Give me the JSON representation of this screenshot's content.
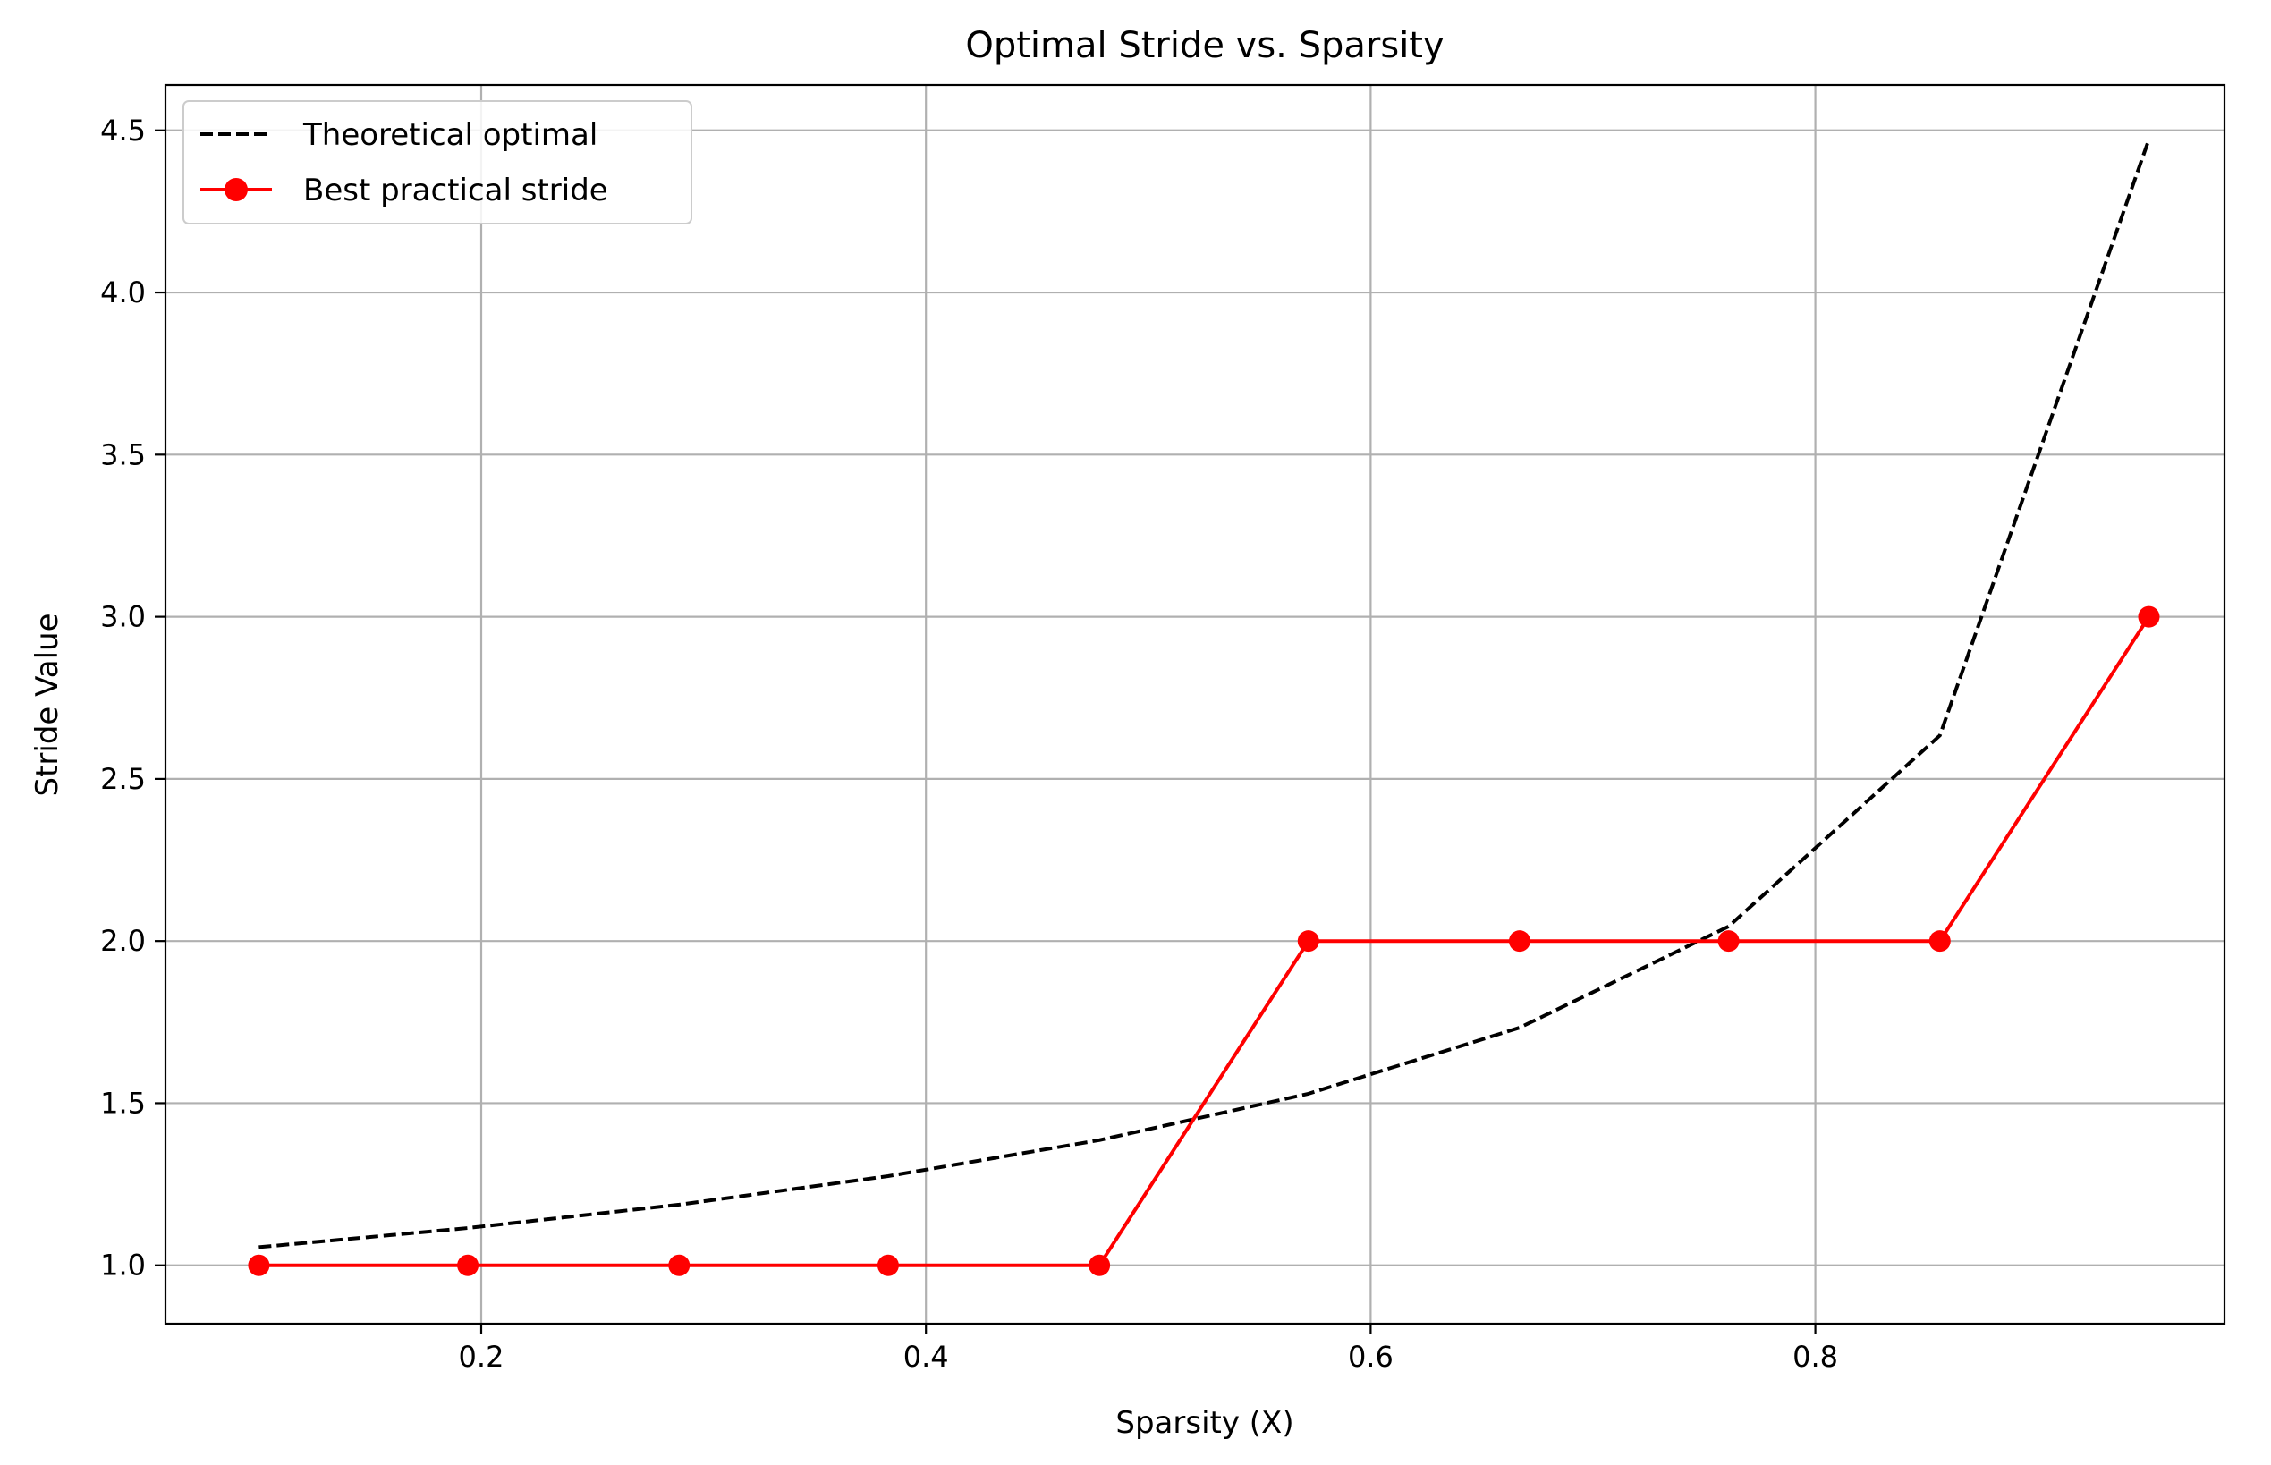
{
  "chart_data": {
    "type": "line",
    "title": "Optimal Stride vs. Sparsity",
    "xlabel": "Sparsity (X)",
    "ylabel": "Stride Value",
    "xlim": [
      0.058,
      0.984
    ],
    "ylim": [
      0.82,
      4.64
    ],
    "x_ticks": [
      0.2,
      0.4,
      0.6,
      0.8
    ],
    "x_tick_labels": [
      "0.2",
      "0.4",
      "0.6",
      "0.8"
    ],
    "y_ticks": [
      1.0,
      1.5,
      2.0,
      2.5,
      3.0,
      3.5,
      4.0,
      4.5
    ],
    "y_tick_labels": [
      "1.0",
      "1.5",
      "2.0",
      "2.5",
      "3.0",
      "3.5",
      "4.0",
      "4.5"
    ],
    "grid": true,
    "legend_position": "top-left",
    "series": [
      {
        "name": "Theoretical optimal",
        "style": "dashed",
        "color": "#000000",
        "marker": "none",
        "x": [
          0.1,
          0.194,
          0.289,
          0.383,
          0.478,
          0.572,
          0.667,
          0.761,
          0.856,
          0.95
        ],
        "y": [
          1.056,
          1.115,
          1.187,
          1.275,
          1.386,
          1.529,
          1.733,
          2.045,
          2.634,
          4.472
        ]
      },
      {
        "name": "Best practical stride",
        "style": "solid",
        "color": "#ff0000",
        "marker": "circle",
        "x": [
          0.1,
          0.194,
          0.289,
          0.383,
          0.478,
          0.572,
          0.667,
          0.761,
          0.856,
          0.95
        ],
        "y": [
          1,
          1,
          1,
          1,
          1,
          2,
          2,
          2,
          2,
          3
        ]
      }
    ]
  }
}
